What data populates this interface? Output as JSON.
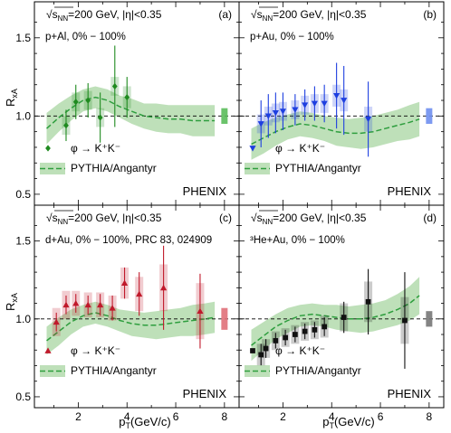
{
  "ylabel": "R",
  "ylabel_sub": "xA",
  "xlabel": "p",
  "xlabel_sub": "T",
  "xlabel_unit": "(GeV/c)",
  "header_prefix": "√s",
  "header_sub": "NN",
  "header_suffix": "=200 GeV, |η|<0.35",
  "experiment": "PHENIX",
  "legend_model": "PYTHIA/Angantyr",
  "colors": {
    "band": "#a8d5a2",
    "model_line": "#2e9e3e",
    "pAl": "#1f8a1f",
    "pAu": "#1e3fe0",
    "dAu": "#c0192b",
    "He3Au": "#111111",
    "norm_pAl": "#5bbd5b",
    "norm_pAu": "#6f8ff0",
    "norm_dAu": "#e07079",
    "norm_He3Au": "#777777"
  },
  "axes": {
    "xlim": [
      0.2,
      8.6
    ],
    "ylim": [
      0.43,
      1.73
    ],
    "xticks": [
      2,
      4,
      6,
      8
    ],
    "xtick_labels": [
      "2",
      "4",
      "6",
      "8"
    ],
    "yticks": [
      0.5,
      1.0,
      1.5
    ],
    "ytick_labels": [
      "0.5",
      "1.0",
      "1.5"
    ]
  },
  "chart_data": [
    {
      "type": "scatter",
      "panel_label": "(a)",
      "system": "p+Al, 0% − 100%",
      "legend": "φ → K⁺K⁻",
      "marker": "diamond",
      "color_key": "pAl",
      "norm_color_key": "norm_pAl",
      "x": [
        1.5,
        1.9,
        2.4,
        2.9,
        3.5,
        4.0
      ],
      "y": [
        0.94,
        1.09,
        1.1,
        0.99,
        1.19,
        1.12
      ],
      "stat_err": [
        0.1,
        0.11,
        0.11,
        0.16,
        0.26,
        0.13
      ],
      "sys_err": [
        0.06,
        0.06,
        0.06,
        0.06,
        0.06,
        0.07
      ],
      "model": {
        "x": [
          0.7,
          1.2,
          1.7,
          2.2,
          2.7,
          3.2,
          3.7,
          4.2,
          4.7,
          5.2,
          5.7,
          6.2,
          6.7,
          7.2,
          7.6
        ],
        "center": [
          0.92,
          0.99,
          1.05,
          1.1,
          1.12,
          1.1,
          1.06,
          1.03,
          1.0,
          0.99,
          0.98,
          0.98,
          0.97,
          0.97,
          0.97
        ],
        "width": [
          0.1,
          0.09,
          0.08,
          0.07,
          0.07,
          0.07,
          0.07,
          0.08,
          0.08,
          0.09,
          0.09,
          0.09,
          0.1,
          0.1,
          0.1
        ]
      },
      "norm_unc": 0.05
    },
    {
      "type": "scatter",
      "panel_label": "(b)",
      "system": "p+Au, 0% − 100%",
      "legend": "φ → K⁺K⁻",
      "marker": "triangle-down",
      "color_key": "pAu",
      "norm_color_key": "norm_pAu",
      "x": [
        1.1,
        1.4,
        1.7,
        2.0,
        2.5,
        2.9,
        3.3,
        3.7,
        4.2,
        4.5,
        5.5
      ],
      "y": [
        0.95,
        1.0,
        1.02,
        1.03,
        1.04,
        1.07,
        1.08,
        1.08,
        1.13,
        1.1,
        0.98
      ],
      "stat_err": [
        0.15,
        0.14,
        0.13,
        0.12,
        0.1,
        0.1,
        0.11,
        0.12,
        0.21,
        0.22,
        0.24
      ],
      "sys_err": [
        0.06,
        0.06,
        0.06,
        0.06,
        0.06,
        0.06,
        0.06,
        0.06,
        0.07,
        0.07,
        0.08
      ],
      "model": {
        "x": [
          0.7,
          1.2,
          1.7,
          2.2,
          2.7,
          3.2,
          3.7,
          4.2,
          4.7,
          5.2,
          5.7,
          6.2,
          6.7,
          7.2,
          7.6
        ],
        "center": [
          0.82,
          0.86,
          0.9,
          0.93,
          0.95,
          0.94,
          0.92,
          0.9,
          0.89,
          0.89,
          0.9,
          0.92,
          0.94,
          0.96,
          0.98
        ],
        "width": [
          0.1,
          0.1,
          0.09,
          0.08,
          0.08,
          0.08,
          0.08,
          0.09,
          0.09,
          0.1,
          0.1,
          0.1,
          0.1,
          0.11,
          0.11
        ]
      },
      "norm_unc": 0.05
    },
    {
      "type": "scatter",
      "panel_label": "(c)",
      "system": "d+Au, 0% − 100%, PRC 83, 024909",
      "legend": "φ → K⁺K⁻",
      "marker": "triangle-up",
      "color_key": "dAu",
      "norm_color_key": "norm_dAu",
      "x": [
        1.1,
        1.5,
        1.9,
        2.4,
        2.9,
        3.4,
        3.9,
        4.5,
        5.5,
        7.0
      ],
      "y": [
        0.98,
        1.09,
        1.1,
        1.09,
        1.09,
        1.07,
        1.23,
        1.16,
        1.2,
        1.05
      ],
      "stat_err": [
        0.06,
        0.06,
        0.06,
        0.06,
        0.07,
        0.08,
        0.1,
        0.14,
        0.27,
        0.24
      ],
      "sys_err": [
        0.09,
        0.09,
        0.08,
        0.08,
        0.08,
        0.08,
        0.1,
        0.11,
        0.15,
        0.18
      ],
      "model": {
        "x": [
          0.7,
          1.2,
          1.7,
          2.2,
          2.7,
          3.2,
          3.7,
          4.2,
          4.7,
          5.2,
          5.7,
          6.2,
          6.7,
          7.2,
          7.6
        ],
        "center": [
          0.86,
          0.92,
          0.98,
          1.02,
          1.04,
          1.02,
          0.99,
          0.97,
          0.96,
          0.96,
          0.97,
          0.98,
          0.99,
          1.0,
          1.01
        ],
        "width": [
          0.09,
          0.09,
          0.08,
          0.07,
          0.07,
          0.07,
          0.07,
          0.08,
          0.08,
          0.09,
          0.09,
          0.09,
          0.1,
          0.1,
          0.1
        ]
      },
      "norm_unc": 0.07
    },
    {
      "type": "scatter",
      "panel_label": "(d)",
      "system": "³He+Au, 0% − 100%",
      "legend": "φ → K⁺K⁻",
      "marker": "square",
      "color_key": "He3Au",
      "norm_color_key": "norm_He3Au",
      "x": [
        1.1,
        1.3,
        1.7,
        2.1,
        2.5,
        2.9,
        3.3,
        3.7,
        4.5,
        5.5,
        7.0
      ],
      "y": [
        0.77,
        0.81,
        0.86,
        0.88,
        0.9,
        0.92,
        0.93,
        0.95,
        1.01,
        1.11,
        0.99
      ],
      "stat_err": [
        0.07,
        0.06,
        0.05,
        0.05,
        0.05,
        0.05,
        0.05,
        0.06,
        0.1,
        0.21,
        0.31
      ],
      "sys_err": [
        0.07,
        0.06,
        0.06,
        0.06,
        0.06,
        0.06,
        0.06,
        0.07,
        0.09,
        0.13,
        0.15
      ],
      "model": {
        "x": [
          0.7,
          1.2,
          1.7,
          2.2,
          2.7,
          3.2,
          3.7,
          4.2,
          4.7,
          5.2,
          5.7,
          6.2,
          6.7,
          7.2,
          7.6
        ],
        "center": [
          0.83,
          0.89,
          0.95,
          0.99,
          1.02,
          1.03,
          1.02,
          1.01,
          1.0,
          1.0,
          1.01,
          1.03,
          1.06,
          1.1,
          1.15
        ],
        "width": [
          0.1,
          0.09,
          0.08,
          0.08,
          0.07,
          0.07,
          0.07,
          0.08,
          0.08,
          0.09,
          0.09,
          0.09,
          0.1,
          0.11,
          0.12
        ]
      },
      "norm_unc": 0.05
    }
  ]
}
